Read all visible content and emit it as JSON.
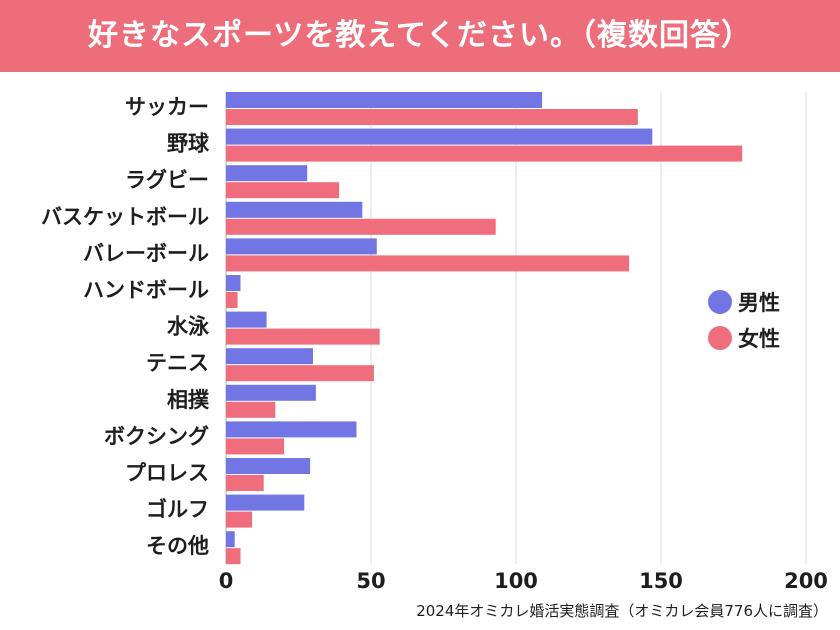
{
  "header": {
    "title": "好きなスポーツを教えてください。（複数回答）"
  },
  "colors": {
    "banner": "#ee6d7b",
    "male": "#7176e4",
    "female": "#ef6d7d",
    "grid": "#e2e2e2",
    "text": "#1e1e1e"
  },
  "chart_data": {
    "type": "bar",
    "orientation": "horizontal",
    "title": "好きなスポーツを教えてください。（複数回答）",
    "categories": [
      "サッカー",
      "野球",
      "ラグビー",
      "バスケットボール",
      "バレーボール",
      "ハンドボール",
      "水泳",
      "テニス",
      "相撲",
      "ボクシング",
      "プロレス",
      "ゴルフ",
      "その他"
    ],
    "series": [
      {
        "name": "男性",
        "color": "#7176e4",
        "values": [
          109,
          147,
          28,
          47,
          52,
          5,
          14,
          30,
          31,
          45,
          29,
          27,
          3
        ]
      },
      {
        "name": "女性",
        "color": "#ef6d7d",
        "values": [
          142,
          178,
          39,
          93,
          139,
          4,
          53,
          51,
          17,
          20,
          13,
          9,
          5
        ]
      }
    ],
    "xlim": [
      0,
      200
    ],
    "xticks": [
      0,
      50,
      100,
      150,
      200
    ],
    "xlabel": "",
    "ylabel": "",
    "grid": true,
    "legend_position": "right"
  },
  "footer": {
    "source": "2024年オミカレ婚活実態調査（オミカレ会員776人に調査）"
  }
}
